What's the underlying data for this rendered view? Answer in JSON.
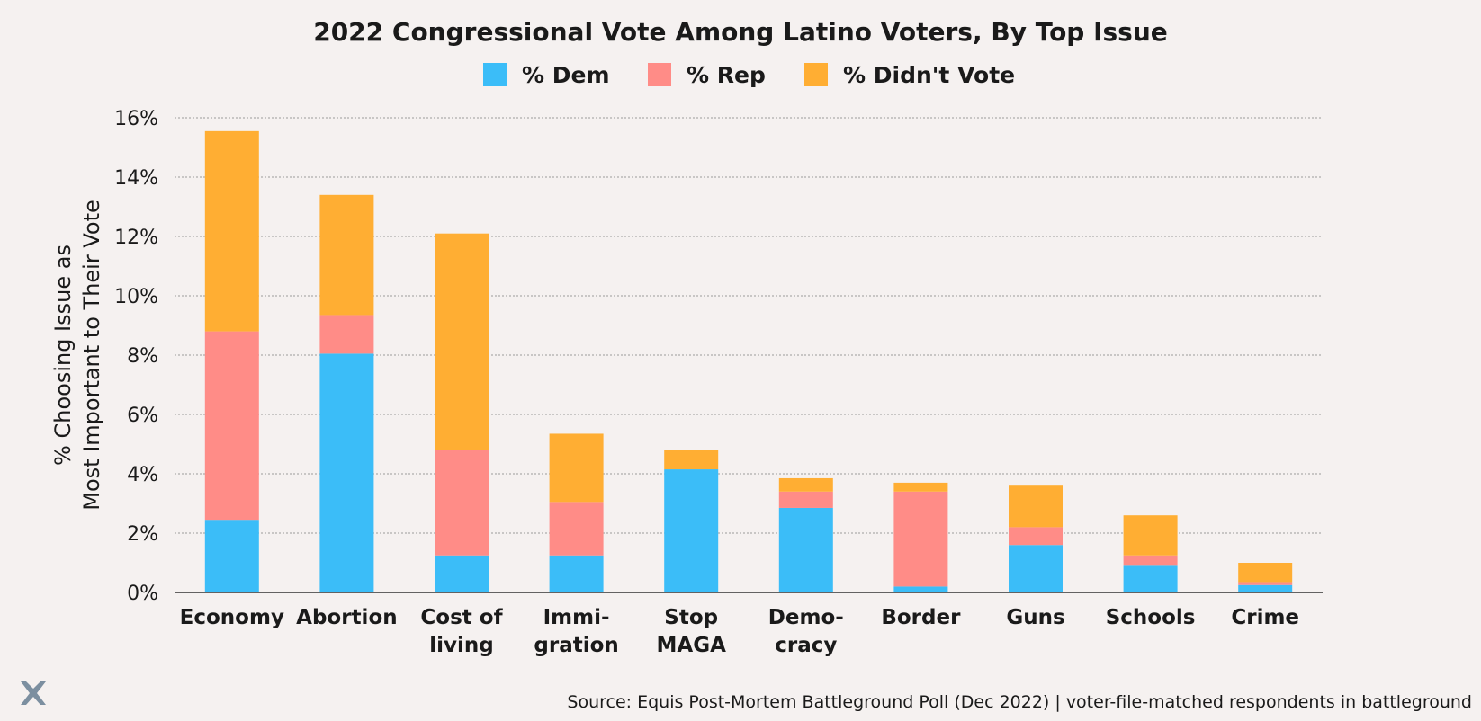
{
  "brand": {
    "logo_icon": "equis-x-logo-icon",
    "logo_color": "#7c8fa0"
  },
  "chart_data": {
    "type": "bar",
    "stacked": true,
    "title": "2022 Congressional Vote Among Latino Voters, By Top Issue",
    "ylabel": [
      "% Choosing Issue as",
      "Most Important to Their Vote"
    ],
    "ylim": [
      0,
      16
    ],
    "yticks": [
      0,
      2,
      4,
      6,
      8,
      10,
      12,
      14,
      16
    ],
    "ytick_labels": [
      "0%",
      "2%",
      "4%",
      "6%",
      "8%",
      "10%",
      "12%",
      "14%",
      "16%"
    ],
    "grid": true,
    "legend_position": "top-center",
    "categories": [
      "Economy",
      "Abortion",
      "Cost of living",
      "Immigration",
      "Stop MAGA",
      "Democracy",
      "Border",
      "Guns",
      "Schools",
      "Crime"
    ],
    "category_labels": [
      [
        "Economy"
      ],
      [
        "Abortion"
      ],
      [
        "Cost of",
        "living"
      ],
      [
        "Immi-",
        "gration"
      ],
      [
        "Stop",
        "MAGA"
      ],
      [
        "Demo-",
        "cracy"
      ],
      [
        "Border"
      ],
      [
        "Guns"
      ],
      [
        "Schools"
      ],
      [
        "Crime"
      ]
    ],
    "series": [
      {
        "name": "% Dem",
        "color": "#3bbdf8",
        "values": [
          2.45,
          8.05,
          1.25,
          1.25,
          4.15,
          2.85,
          0.2,
          1.6,
          0.9,
          0.25
        ]
      },
      {
        "name": "% Rep",
        "color": "#ff8c87",
        "values": [
          6.35,
          1.3,
          3.55,
          1.8,
          0.0,
          0.55,
          3.2,
          0.6,
          0.35,
          0.1
        ]
      },
      {
        "name": "% Didn't Vote",
        "color": "#ffae33",
        "values": [
          6.75,
          4.05,
          7.3,
          2.3,
          0.65,
          0.45,
          0.3,
          1.4,
          1.35,
          0.65
        ]
      }
    ],
    "source": "Source: Equis Post-Mortem Battleground Poll (Dec 2022) | voter-file-matched respondents in battleground"
  }
}
